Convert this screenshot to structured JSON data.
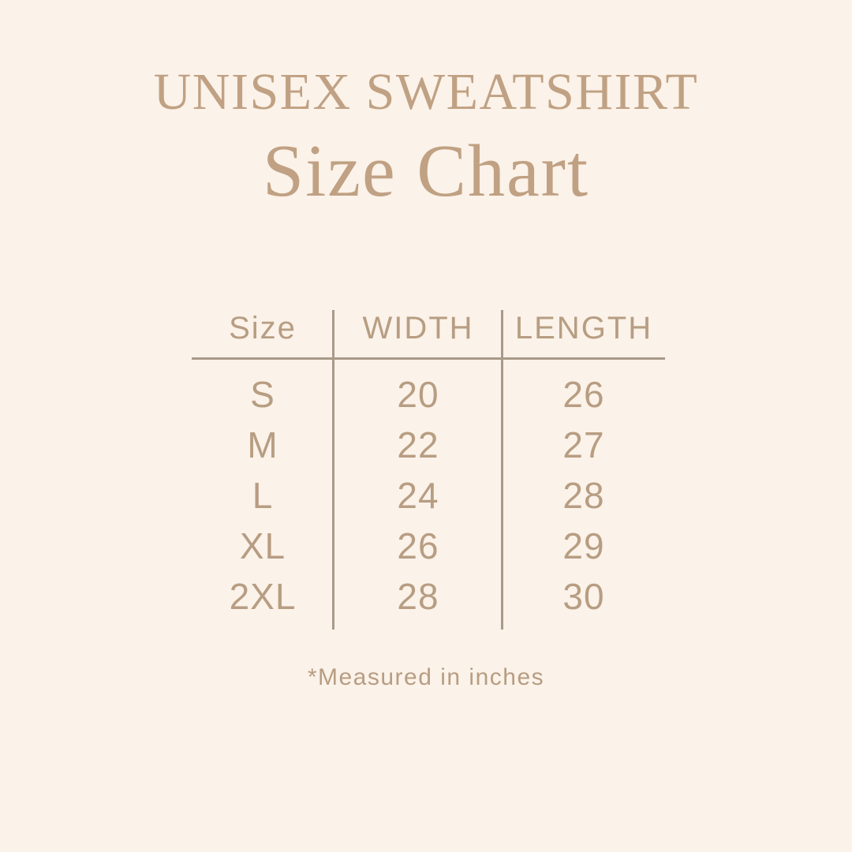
{
  "theme": {
    "background": "#fbf2e9",
    "heading_color": "#c0a183",
    "text_color": "#b79d82",
    "line_color": "#a89a89"
  },
  "header": {
    "title": "UNISEX SWEATSHIRT",
    "subtitle": "Size Chart"
  },
  "chart_data": {
    "type": "table",
    "title": "UNISEX SWEATSHIRT Size Chart",
    "columns": [
      "Size",
      "WIDTH",
      "LENGTH"
    ],
    "rows": [
      {
        "size": "S",
        "width": "20",
        "length": "26"
      },
      {
        "size": "M",
        "width": "22",
        "length": "27"
      },
      {
        "size": "L",
        "width": "24",
        "length": "28"
      },
      {
        "size": "XL",
        "width": "26",
        "length": "29"
      },
      {
        "size": "2XL",
        "width": "28",
        "length": "30"
      }
    ],
    "units": "inches",
    "footnote": "*Measured in inches",
    "layout": {
      "grid": "off",
      "column_dividers": "vertical lines between Size/WIDTH and WIDTH/LENGTH",
      "header_rule": "horizontal line under header row"
    }
  }
}
